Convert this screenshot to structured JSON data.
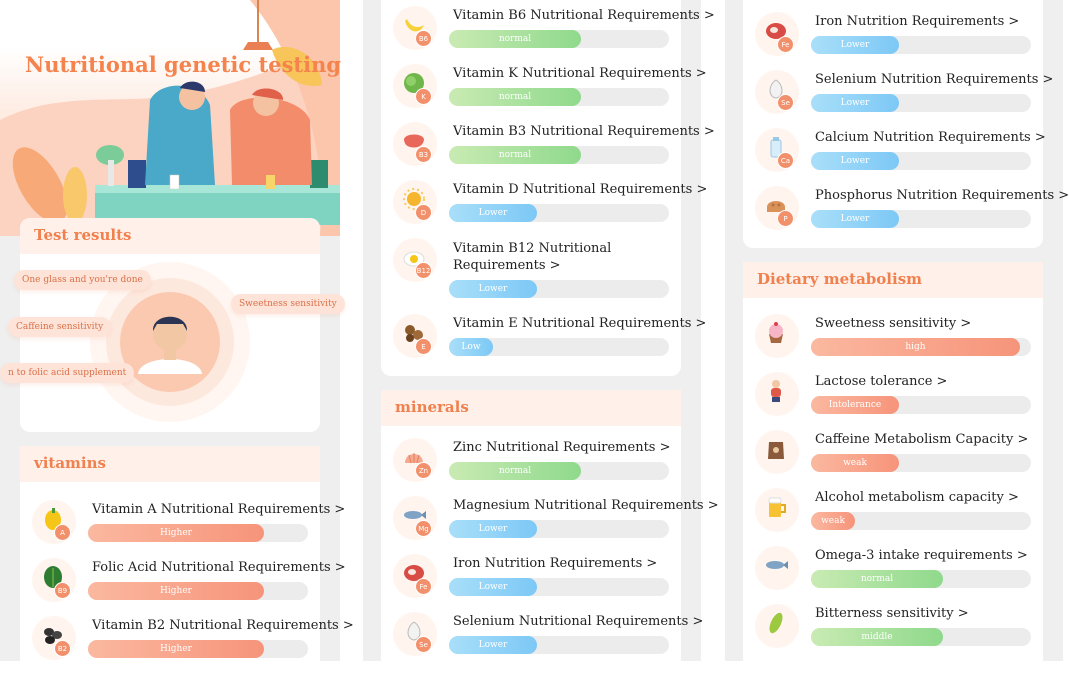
{
  "hero": {
    "title": "Nutritional genetic testing"
  },
  "test_results": {
    "title": "Test results",
    "chips": [
      "One glass and you're done",
      "Sweetness sensitivity",
      "Caffeine sensitivity",
      "n to folic acid supplement"
    ]
  },
  "screen1": {
    "section_title": "vitamins",
    "items": [
      {
        "label": "Vitamin A Nutritional Requirements >",
        "level": "Higher",
        "fill": 0.8,
        "badge": "A",
        "icon": "bell-pepper-icon"
      },
      {
        "label": "Folic Acid Nutritional Requirements >",
        "level": "Higher",
        "fill": 0.8,
        "badge": "B9",
        "icon": "spinach-icon"
      },
      {
        "label": "Vitamin B2 Nutritional Requirements >",
        "level": "Higher",
        "fill": 0.8,
        "badge": "B2",
        "icon": "beans-icon"
      }
    ]
  },
  "screen2": {
    "vitamin_items": [
      {
        "label": "Vitamin B6 Nutritional Requirements >",
        "level": "normal",
        "fill": 0.6,
        "badge": "B6",
        "icon": "banana-icon"
      },
      {
        "label": "Vitamin K Nutritional Requirements >",
        "level": "normal",
        "fill": 0.6,
        "badge": "K",
        "icon": "lettuce-icon"
      },
      {
        "label": "Vitamin B3 Nutritional Requirements >",
        "level": "normal",
        "fill": 0.6,
        "badge": "B3",
        "icon": "liver-icon"
      },
      {
        "label": "Vitamin D Nutritional Requirements >",
        "level": "Lower",
        "fill": 0.4,
        "badge": "D",
        "icon": "sun-icon"
      },
      {
        "label": "Vitamin B12 Nutritional Requirements >",
        "level": "Lower",
        "fill": 0.4,
        "badge": "B12",
        "icon": "egg-icon"
      },
      {
        "label": "Vitamin E Nutritional Requirements >",
        "level": "Low",
        "fill": 0.2,
        "badge": "E",
        "icon": "nuts-icon"
      }
    ],
    "minerals_title": "minerals",
    "mineral_items": [
      {
        "label": "Zinc Nutritional Requirements >",
        "level": "normal",
        "fill": 0.6,
        "badge": "Zn",
        "icon": "shell-icon"
      },
      {
        "label": "Magnesium Nutritional Requirements >",
        "level": "Lower",
        "fill": 0.4,
        "badge": "Mg",
        "icon": "fish-icon"
      },
      {
        "label": "Iron Nutrition Requirements >",
        "level": "Lower",
        "fill": 0.4,
        "badge": "Fe",
        "icon": "steak-icon"
      },
      {
        "label": "Selenium Nutritional Requirements >",
        "level": "Lower",
        "fill": 0.4,
        "badge": "Se",
        "icon": "garlic-icon"
      }
    ]
  },
  "screen3": {
    "mineral_items": [
      {
        "label": "Iron Nutrition Requirements >",
        "level": "Lower",
        "fill": 0.4,
        "badge": "Fe",
        "icon": "steak-icon"
      },
      {
        "label": "Selenium Nutrition Requirements >",
        "level": "Lower",
        "fill": 0.4,
        "badge": "Se",
        "icon": "garlic-icon"
      },
      {
        "label": "Calcium Nutrition Requirements >",
        "level": "Lower",
        "fill": 0.4,
        "badge": "Ca",
        "icon": "milk-icon"
      },
      {
        "label": "Phosphorus Nutrition Requirements >",
        "level": "Lower",
        "fill": 0.4,
        "badge": "P",
        "icon": "bread-icon"
      }
    ],
    "dietary_title": "Dietary metabolism",
    "dietary_items": [
      {
        "label": "Sweetness sensitivity >",
        "level": "high",
        "fill": 0.95,
        "badge": "",
        "icon": "cupcake-icon"
      },
      {
        "label": "Lactose tolerance >",
        "level": "Intolerance",
        "fill": 0.4,
        "badge": "",
        "icon": "stomach-ache-icon"
      },
      {
        "label": "Caffeine Metabolism Capacity >",
        "level": "weak",
        "fill": 0.4,
        "badge": "",
        "icon": "coffee-bag-icon"
      },
      {
        "label": "Alcohol metabolism capacity >",
        "level": "weak",
        "fill": 0.2,
        "badge": "",
        "icon": "beer-icon"
      },
      {
        "label": "Omega-3 intake requirements >",
        "level": "normal",
        "fill": 0.6,
        "badge": "",
        "icon": "fish-icon"
      },
      {
        "label": "Bitterness sensitivity >",
        "level": "middle",
        "fill": 0.6,
        "badge": "",
        "icon": "bitter-melon-icon"
      }
    ]
  },
  "colors": {
    "accent": "#f4834e",
    "normal": "#8fd98c",
    "lower": "#7cc8f6",
    "higher": "#f6947a"
  }
}
